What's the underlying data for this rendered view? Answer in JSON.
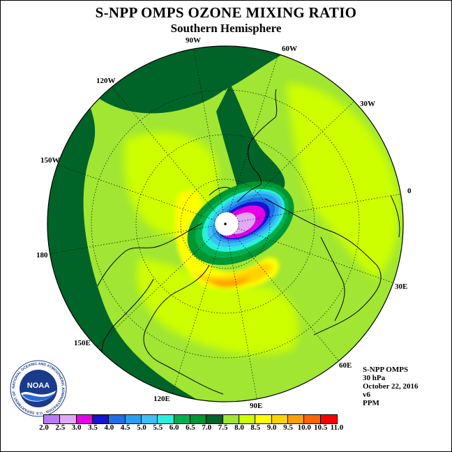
{
  "title": "S-NPP OMPS OZONE MIXING RATIO",
  "subtitle": "Southern Hemisphere",
  "longitude_labels": {
    "lon_90w": "90W",
    "lon_60w": "60W",
    "lon_120w": "120W",
    "lon_30w": "30W",
    "lon_150w": "150W",
    "lon_0": "0",
    "lon_180": "180",
    "lon_30e": "30E",
    "lon_150e": "150E",
    "lon_60e": "60E",
    "lon_120e": "120E",
    "lon_90e": "90E"
  },
  "meta": {
    "instrument": "S-NPP OMPS",
    "level": "30 hPa",
    "date": "October 22, 2016",
    "version": "v6",
    "units": "PPM"
  },
  "logo_text": "NOAA",
  "logo_ring_text": "NATIONAL OCEANIC AND ATMOSPHERIC ADMINISTRATION · U.S. DEPARTMENT OF COMMERCE",
  "colorbar": {
    "ticks": [
      "2.0",
      "2.5",
      "3.0",
      "3.5",
      "4.0",
      "4.5",
      "5.0",
      "5.5",
      "6.0",
      "6.5",
      "7.0",
      "7.5",
      "8.0",
      "8.5",
      "9.0",
      "9.5",
      "10.0",
      "10.5",
      "11.0"
    ],
    "colors": [
      "#b77cf2",
      "#e0a8f5",
      "#e600e6",
      "#1414d2",
      "#1e6ee6",
      "#28a0f0",
      "#3cc0f5",
      "#28f0dc",
      "#00b050",
      "#009632",
      "#006428",
      "#a0e632",
      "#cdff00",
      "#ffff00",
      "#ffd200",
      "#ffa000",
      "#ff6400",
      "#ff0000",
      "#8b4513"
    ]
  }
}
